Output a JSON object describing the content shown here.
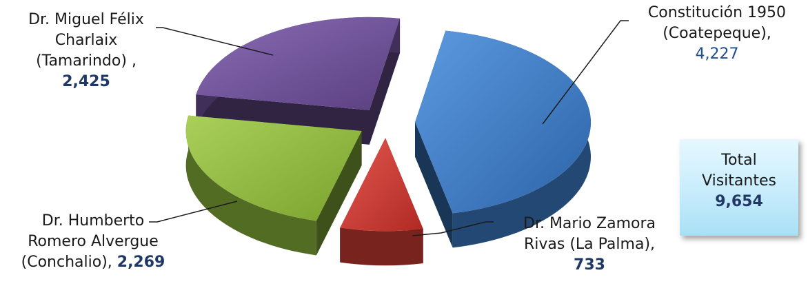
{
  "chart_data": {
    "type": "pie",
    "three_d": true,
    "exploded": true,
    "categories": [
      "Constitución 1950 (Coatepeque)",
      "Dr. Mario Zamora Rivas (La Palma)",
      "Dr. Humberto Romero Alvergue (Conchalio)",
      "Dr. Miguel Félix Charlaix (Tamarindo)"
    ],
    "values": [
      4227,
      733,
      2269,
      2425
    ],
    "value_labels": [
      "4,227",
      "733",
      "2,269",
      "2,425"
    ],
    "colors": [
      "#3a78c2",
      "#c93a33",
      "#8bb43a",
      "#6b4f93"
    ],
    "labels": {
      "blue": {
        "line1": "Constitución 1950",
        "line2": "(Coatepeque),",
        "value": "4,227"
      },
      "red": {
        "line1": "Dr. Mario Zamora",
        "line2": "Rivas (La Palma),",
        "value": "733"
      },
      "green": {
        "line1": "Dr. Humberto",
        "line2": "Romero Alvergue",
        "line3": "(Conchalio), ",
        "value": "2,269"
      },
      "purple": {
        "line1": "Dr. Miguel Félix",
        "line2": "Charlaix",
        "line3": "(Tamarindo) ,",
        "value": "2,425"
      }
    },
    "total": {
      "label_line1": "Total",
      "label_line2": "Visitantes",
      "value": "9,654"
    }
  }
}
